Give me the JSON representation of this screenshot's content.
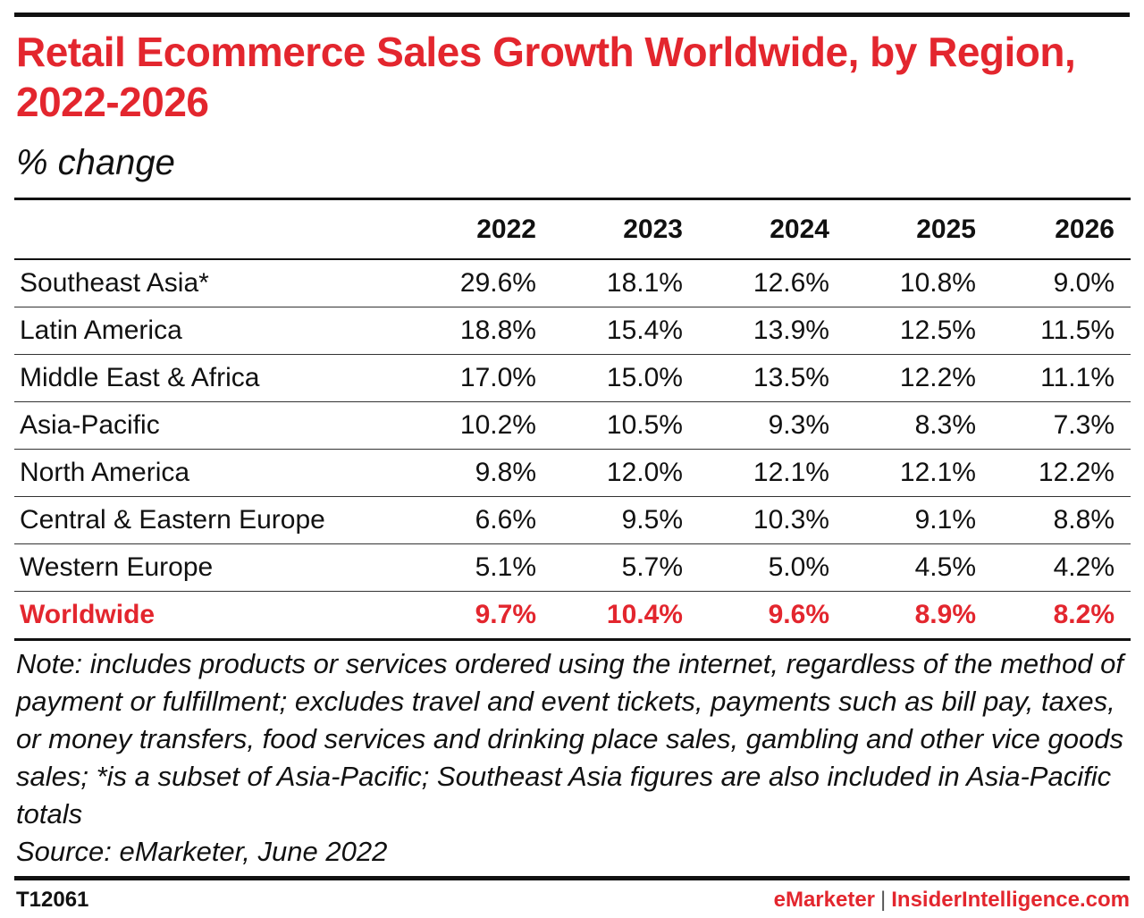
{
  "colors": {
    "accent": "#e3262e",
    "text": "#111111",
    "rule": "#111111"
  },
  "header": {
    "title": "Retail Ecommerce Sales Growth Worldwide, by Region, 2022-2026",
    "subtitle": "% change"
  },
  "chart_data": {
    "type": "table",
    "title": "Retail Ecommerce Sales Growth Worldwide, by Region, 2022-2026",
    "subtitle": "% change",
    "columns": [
      "2022",
      "2023",
      "2024",
      "2025",
      "2026"
    ],
    "rows": [
      {
        "label": "Southeast Asia*",
        "values": [
          "29.6%",
          "18.1%",
          "12.6%",
          "10.8%",
          "9.0%"
        ]
      },
      {
        "label": "Latin America",
        "values": [
          "18.8%",
          "15.4%",
          "13.9%",
          "12.5%",
          "11.5%"
        ]
      },
      {
        "label": "Middle East & Africa",
        "values": [
          "17.0%",
          "15.0%",
          "13.5%",
          "12.2%",
          "11.1%"
        ]
      },
      {
        "label": "Asia-Pacific",
        "values": [
          "10.2%",
          "10.5%",
          "9.3%",
          "8.3%",
          "7.3%"
        ]
      },
      {
        "label": "North America",
        "values": [
          "9.8%",
          "12.0%",
          "12.1%",
          "12.1%",
          "12.2%"
        ]
      },
      {
        "label": "Central & Eastern Europe",
        "values": [
          "6.6%",
          "9.5%",
          "10.3%",
          "9.1%",
          "8.8%"
        ]
      },
      {
        "label": "Western Europe",
        "values": [
          "5.1%",
          "5.7%",
          "5.0%",
          "4.5%",
          "4.2%"
        ]
      },
      {
        "label": "Worldwide",
        "values": [
          "9.7%",
          "10.4%",
          "9.6%",
          "8.9%",
          "8.2%"
        ],
        "highlight": true
      }
    ]
  },
  "footer": {
    "note": "Note: includes products or services ordered using the internet, regardless of the method of payment or fulfillment; excludes travel and event tickets, payments such as bill pay, taxes, or money transfers, food services and drinking place sales, gambling and other vice goods sales; *is a subset of Asia-Pacific; Southeast Asia figures are also included in Asia-Pacific totals",
    "source": "Source: eMarketer, June 2022",
    "chart_id": "T12061",
    "brand_left": "eMarketer",
    "brand_sep": "|",
    "brand_right": "InsiderIntelligence.com"
  }
}
